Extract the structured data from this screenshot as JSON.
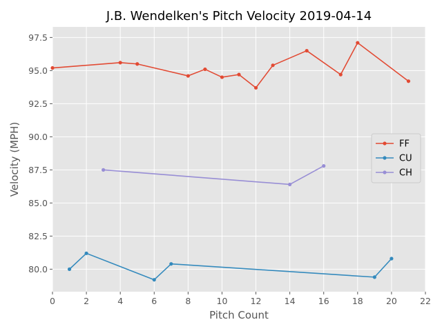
{
  "chart_data": {
    "type": "line",
    "title": "J.B. Wendelken's Pitch Velocity 2019-04-14",
    "xlabel": "Pitch Count",
    "ylabel": "Velocity (MPH)",
    "xlim": [
      0,
      22
    ],
    "ylim": [
      78.3,
      98.3
    ],
    "xticks": [
      0,
      2,
      4,
      6,
      8,
      10,
      12,
      14,
      16,
      18,
      20,
      22
    ],
    "yticks": [
      80.0,
      82.5,
      85.0,
      87.5,
      90.0,
      92.5,
      95.0,
      97.5
    ],
    "ytick_labels": [
      "80.0",
      "82.5",
      "85.0",
      "87.5",
      "90.0",
      "92.5",
      "95.0",
      "97.5"
    ],
    "grid": true,
    "legend_position": "center-right",
    "series": [
      {
        "name": "FF",
        "color": "#E24A33",
        "x": [
          0,
          4,
          5,
          8,
          9,
          10,
          11,
          12,
          13,
          15,
          17,
          18,
          21
        ],
        "y": [
          95.2,
          95.6,
          95.5,
          94.6,
          95.1,
          94.5,
          94.7,
          93.7,
          95.4,
          96.5,
          94.7,
          97.1,
          94.2
        ]
      },
      {
        "name": "CU",
        "color": "#348ABD",
        "x": [
          1,
          2,
          6,
          7,
          19,
          20
        ],
        "y": [
          80.0,
          81.2,
          79.2,
          80.4,
          79.4,
          80.8
        ]
      },
      {
        "name": "CH",
        "color": "#988ED5",
        "x": [
          3,
          14,
          16
        ],
        "y": [
          87.5,
          86.4,
          87.8
        ]
      }
    ]
  }
}
